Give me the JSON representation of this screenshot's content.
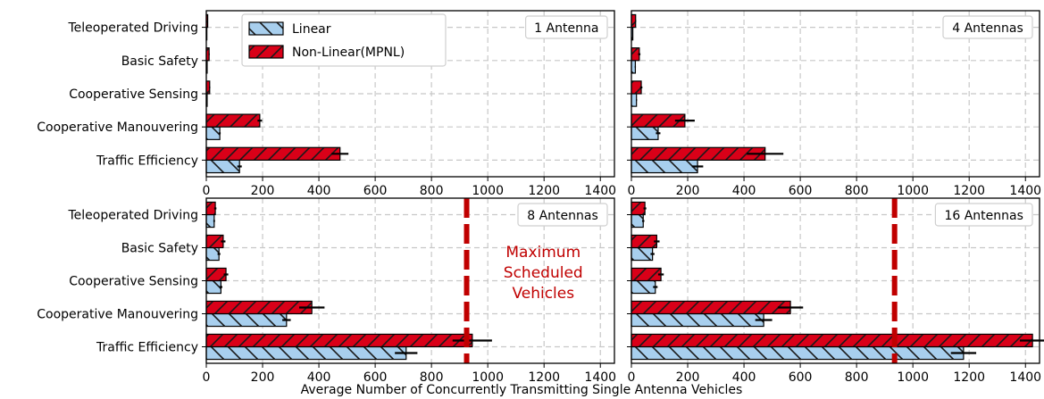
{
  "figure": {
    "xlabel": "Average Number of Concurrently Transmitting Single Antenna Vehicles"
  },
  "chart_data": [
    {
      "type": "bar",
      "orientation": "horizontal",
      "panel_label": "1 Antenna",
      "categories": [
        "Teleoperated Driving",
        "Basic Safety",
        "Cooperative Sensing",
        "Cooperative Manouvering",
        "Traffic Efficiency"
      ],
      "xlim": [
        0,
        1450
      ],
      "xticks": [
        0,
        200,
        400,
        600,
        800,
        1000,
        1200,
        1400
      ],
      "grid": true,
      "legend_position": "top-left",
      "series": [
        {
          "name": "Linear",
          "values": [
            2,
            3,
            3,
            48,
            118
          ],
          "errors": [
            1,
            1,
            1,
            3,
            8
          ]
        },
        {
          "name": "Non-Linear(MPNL)",
          "values": [
            5,
            10,
            12,
            190,
            475
          ],
          "errors": [
            1,
            2,
            2,
            8,
            30
          ]
        }
      ]
    },
    {
      "type": "bar",
      "orientation": "horizontal",
      "panel_label": "4 Antennas",
      "categories": [
        "Teleoperated Driving",
        "Basic Safety",
        "Cooperative Sensing",
        "Cooperative Manouvering",
        "Traffic Efficiency"
      ],
      "xlim": [
        0,
        1450
      ],
      "xticks": [
        0,
        200,
        400,
        600,
        800,
        1000,
        1200,
        1400
      ],
      "grid": true,
      "series": [
        {
          "name": "Linear",
          "values": [
            5,
            14,
            18,
            95,
            235
          ],
          "errors": [
            1,
            2,
            2,
            8,
            20
          ]
        },
        {
          "name": "Non-Linear(MPNL)",
          "values": [
            15,
            28,
            35,
            190,
            475
          ],
          "errors": [
            2,
            4,
            4,
            35,
            65
          ]
        }
      ]
    },
    {
      "type": "bar",
      "orientation": "horizontal",
      "panel_label": "8 Antennas",
      "categories": [
        "Teleoperated Driving",
        "Basic Safety",
        "Cooperative Sensing",
        "Cooperative Manouvering",
        "Traffic Efficiency"
      ],
      "xlim": [
        0,
        1450
      ],
      "xticks": [
        0,
        200,
        400,
        600,
        800,
        1000,
        1200,
        1400
      ],
      "grid": true,
      "series": [
        {
          "name": "Linear",
          "values": [
            28,
            45,
            52,
            285,
            710
          ],
          "errors": [
            3,
            5,
            5,
            15,
            40
          ]
        },
        {
          "name": "Non-Linear(MPNL)",
          "values": [
            32,
            60,
            70,
            375,
            945
          ],
          "errors": [
            4,
            8,
            8,
            45,
            70
          ]
        }
      ],
      "reference_line": {
        "x": 925,
        "label": "Maximum Scheduled Vehicles",
        "color": "#c00000"
      }
    },
    {
      "type": "bar",
      "orientation": "horizontal",
      "panel_label": "16 Antennas",
      "categories": [
        "Teleoperated Driving",
        "Basic Safety",
        "Cooperative Sensing",
        "Cooperative Manouvering",
        "Traffic Efficiency"
      ],
      "xlim": [
        0,
        1450
      ],
      "xticks": [
        0,
        200,
        400,
        600,
        800,
        1000,
        1200,
        1400
      ],
      "grid": true,
      "series": [
        {
          "name": "Linear",
          "values": [
            42,
            75,
            85,
            470,
            1180
          ],
          "errors": [
            4,
            7,
            8,
            30,
            45
          ]
        },
        {
          "name": "Non-Linear(MPNL)",
          "values": [
            48,
            90,
            105,
            565,
            1425
          ],
          "errors": [
            5,
            10,
            10,
            45,
            45
          ]
        }
      ],
      "reference_line": {
        "x": 935,
        "label": "",
        "color": "#c00000"
      }
    }
  ],
  "colors": {
    "linear_fill": "#a8cfee",
    "nonlinear_fill": "#d90018",
    "hatch": "#1a1a1a",
    "grid": "#c8c8c8",
    "reference": "#c00000"
  }
}
